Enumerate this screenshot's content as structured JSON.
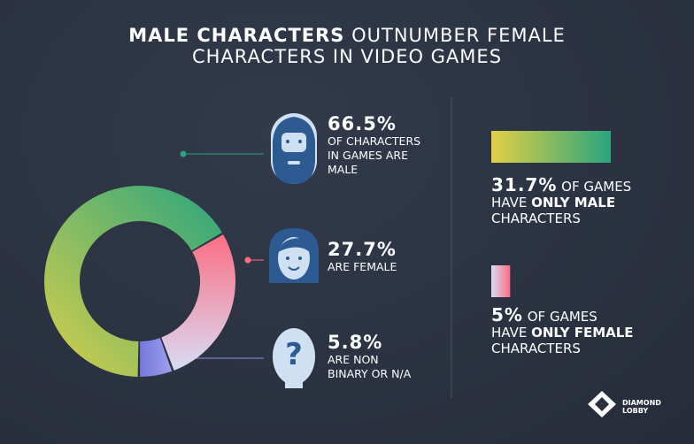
{
  "title": {
    "bold": "MALE CHARACTERS",
    "rest": "OUTNUMBER FEMALE",
    "line2": "CHARACTERS IN VIDEO GAMES"
  },
  "chart_data": [
    {
      "type": "donut",
      "labels": [
        [
          "OF CHARACTERS",
          "IN GAMES ARE",
          "MALE"
        ],
        [
          "ARE FEMALE"
        ],
        [
          "ARE NON",
          "BINARY OR N/A"
        ]
      ],
      "values": [
        66.5,
        27.7,
        5.8
      ],
      "value_labels": [
        "66.5%",
        "27.7%",
        "5.8%"
      ],
      "colors": [
        [
          "#d9cf4a",
          "#2aa57e"
        ],
        [
          "#fb6e83",
          "#d8dcf4"
        ],
        [
          "#7478dc",
          "#9da0ee"
        ]
      ]
    },
    {
      "type": "bar",
      "values": [
        31.7,
        5
      ],
      "value_labels": [
        "31.7%",
        "5%"
      ],
      "notes": [
        {
          "after_value": "OF GAMES",
          "pre": "HAVE",
          "bold": "ONLY MALE",
          "post": "CHARACTERS"
        },
        {
          "after_value": "OF GAMES",
          "pre": "HAVE",
          "bold": "ONLY FEMALE",
          "post": "CHARACTERS"
        }
      ],
      "colors": [
        [
          "#e3cf45",
          "#2aa57e"
        ],
        [
          "#d8dcf4",
          "#fb6e83"
        ]
      ]
    }
  ],
  "logo": [
    "DIAMOND",
    "LOBBY"
  ]
}
